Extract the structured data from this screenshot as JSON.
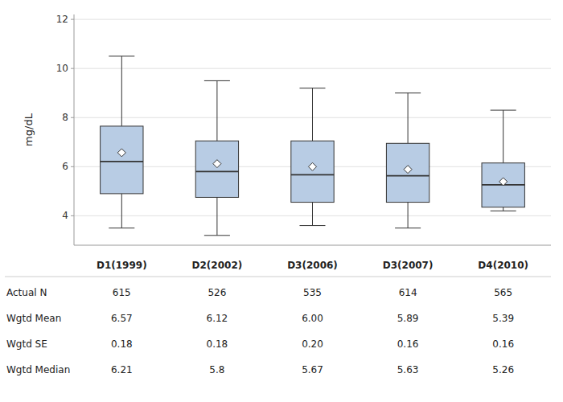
{
  "chart_data": {
    "type": "box",
    "categories": [
      "D1(1999)",
      "D2(2002)",
      "D3(2006)",
      "D3(2007)",
      "D4(2010)"
    ],
    "boxes": [
      {
        "q1": 4.9,
        "median": 6.21,
        "q3": 7.65,
        "whisker_low": 3.5,
        "whisker_high": 10.5,
        "mean": 6.57
      },
      {
        "q1": 4.75,
        "median": 5.8,
        "q3": 7.05,
        "whisker_low": 3.2,
        "whisker_high": 9.5,
        "mean": 6.12
      },
      {
        "q1": 4.55,
        "median": 5.67,
        "q3": 7.05,
        "whisker_low": 3.6,
        "whisker_high": 9.2,
        "mean": 6.0
      },
      {
        "q1": 4.55,
        "median": 5.63,
        "q3": 6.95,
        "whisker_low": 3.5,
        "whisker_high": 9.0,
        "mean": 5.89
      },
      {
        "q1": 4.35,
        "median": 5.26,
        "q3": 6.15,
        "whisker_low": 4.2,
        "whisker_high": 8.3,
        "mean": 5.39
      }
    ],
    "table_rows": [
      {
        "label": "Actual N",
        "values": [
          "615",
          "526",
          "535",
          "614",
          "565"
        ]
      },
      {
        "label": "Wgtd Mean",
        "values": [
          "6.57",
          "6.12",
          "6.00",
          "5.89",
          "5.39"
        ]
      },
      {
        "label": "Wgtd SE",
        "values": [
          "0.18",
          "0.18",
          "0.20",
          "0.16",
          "0.16"
        ]
      },
      {
        "label": "Wgtd Median",
        "values": [
          "6.21",
          "5.8",
          "5.67",
          "5.63",
          "5.26"
        ]
      }
    ],
    "ylabel": "mg/dL",
    "ylim": [
      2.8,
      12.2
    ],
    "yticks": [
      4,
      6,
      8,
      10,
      12
    ],
    "grid": true,
    "color": "#b8cce4"
  }
}
